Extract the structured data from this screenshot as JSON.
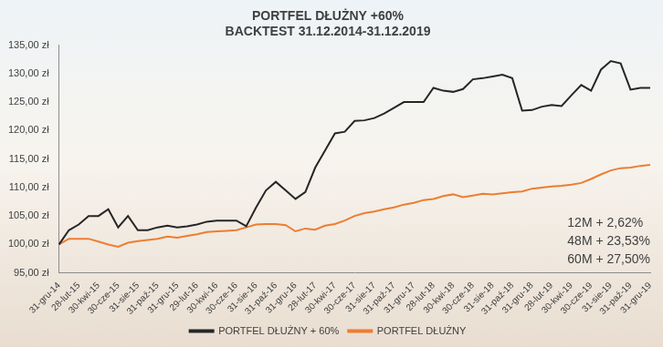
{
  "chart_data": {
    "type": "line",
    "title": [
      "PORTFEL DŁUŻNY +60%",
      "BACKTEST 31.12.2014-31.12.2019"
    ],
    "annotations": [
      "12M + 2,62%",
      "48M + 23,53%",
      "60M + 27,50%"
    ],
    "categories": [
      "31-gru-14",
      null,
      "28-lut-15",
      null,
      "30-kwi-15",
      null,
      "30-cze-15",
      null,
      "31-sie-15",
      null,
      "31-paź-15",
      null,
      "31-gru-15",
      null,
      "29-lut-16",
      null,
      "30-kwi-16",
      null,
      "30-cze-16",
      null,
      "31-sie-16",
      null,
      "31-paź-16",
      null,
      "31-gru-16",
      null,
      "28-lut-17",
      null,
      "30-kwi-17",
      null,
      "30-cze-17",
      null,
      "31-sie-17",
      null,
      "31-paź-17",
      null,
      "31-gru-17",
      null,
      "28-lut-18",
      null,
      "30-kwi-18",
      null,
      "30-cze-18",
      null,
      "31-sie-18",
      null,
      "31-paź-18",
      null,
      "31-gru-18",
      null,
      "28-lut-19",
      null,
      "30-kwi-19",
      null,
      "30-cze-19",
      null,
      "31-sie-19",
      null,
      "31-paź-19",
      null,
      "31-gru-19"
    ],
    "series": [
      {
        "name": "PORTFEL DŁUŻNY + 60%",
        "color": "#262626",
        "values": [
          100,
          102.5,
          103.5,
          105,
          105,
          106.2,
          103,
          105,
          102.5,
          102.5,
          103,
          103.3,
          103,
          103.2,
          103.5,
          104,
          104.2,
          104.2,
          104.2,
          103.2,
          106.5,
          109.5,
          111,
          109.5,
          108,
          109.2,
          113.5,
          116.5,
          119.5,
          119.8,
          121.7,
          121.8,
          122.2,
          123,
          124,
          125,
          125,
          125,
          127.5,
          127,
          126.8,
          127.3,
          129,
          129.2,
          129.5,
          129.8,
          129.2,
          123.5,
          123.6,
          124.2,
          124.5,
          124.3,
          126.2,
          128,
          127,
          130.7,
          132.2,
          131.8,
          127.2,
          127.5,
          127.5
        ]
      },
      {
        "name": "PORTFEL DŁUŻNY",
        "color": "#ed7d31",
        "values": [
          100,
          101,
          101,
          101,
          100.5,
          100,
          99.6,
          100.3,
          100.6,
          100.8,
          101,
          101.4,
          101.2,
          101.5,
          101.8,
          102.2,
          102.3,
          102.4,
          102.5,
          103,
          103.5,
          103.6,
          103.6,
          103.4,
          102.3,
          102.8,
          102.6,
          103.3,
          103.6,
          104.2,
          105,
          105.5,
          105.8,
          106.2,
          106.5,
          107,
          107.3,
          107.8,
          108,
          108.5,
          108.8,
          108.3,
          108.6,
          108.9,
          108.8,
          109,
          109.2,
          109.3,
          109.8,
          110,
          110.2,
          110.3,
          110.5,
          110.8,
          111.5,
          112.3,
          113,
          113.4,
          113.5,
          113.8,
          114
        ]
      }
    ],
    "ylim": [
      95,
      135
    ],
    "yticks": [
      {
        "value": 95,
        "label": "95,00 zł"
      },
      {
        "value": 100,
        "label": "100,00 zł"
      },
      {
        "value": 105,
        "label": "105,00 zł"
      },
      {
        "value": 110,
        "label": "110,00 zł"
      },
      {
        "value": 115,
        "label": "115,00 zł"
      },
      {
        "value": 120,
        "label": "120,00 zł"
      },
      {
        "value": 125,
        "label": "125,00 zł"
      },
      {
        "value": 130,
        "label": "130,00 zł"
      },
      {
        "value": 135,
        "label": "135,00 zł"
      }
    ],
    "grid": false,
    "legend": "bottom"
  }
}
